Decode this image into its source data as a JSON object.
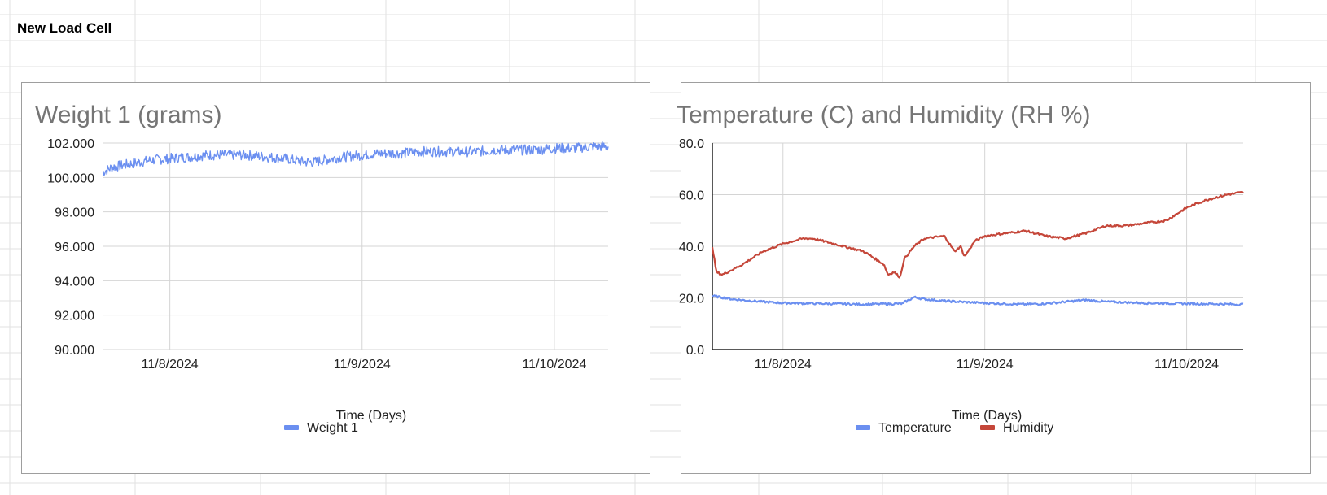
{
  "sheet": {
    "cell_label": "New Load Cell"
  },
  "chart_data": [
    {
      "type": "line",
      "title": "Weight 1 (grams)",
      "xlabel": "Time (Days)",
      "ylabel": "",
      "ylim": [
        90,
        102
      ],
      "y_ticks": [
        "90.000",
        "92.000",
        "94.000",
        "96.000",
        "98.000",
        "100.000",
        "102.000"
      ],
      "x_ticks": [
        "11/8/2024",
        "11/9/2024",
        "11/10/2024"
      ],
      "x_range_days": [
        -0.35,
        2.28
      ],
      "legend_position": "bottom",
      "grid": true,
      "series": [
        {
          "name": "Weight 1",
          "color": "#6b8ff0",
          "x": [
            -0.35,
            -0.3,
            -0.2,
            -0.1,
            0,
            0.1,
            0.2,
            0.3,
            0.4,
            0.5,
            0.6,
            0.7,
            0.75,
            0.8,
            0.9,
            1,
            1.1,
            1.2,
            1.3,
            1.4,
            1.5,
            1.6,
            1.7,
            1.8,
            1.9,
            2,
            2.1,
            2.2,
            2.28
          ],
          "y": [
            100.3,
            100.6,
            100.8,
            101.0,
            101.1,
            101.2,
            101.3,
            101.3,
            101.3,
            101.2,
            101.1,
            100.9,
            100.9,
            101.0,
            101.2,
            101.3,
            101.4,
            101.4,
            101.5,
            101.5,
            101.5,
            101.5,
            101.6,
            101.6,
            101.6,
            101.7,
            101.7,
            101.8,
            101.8
          ],
          "noise": 0.3
        }
      ]
    },
    {
      "type": "line",
      "title": "Temperature (C) and Humidity (RH %)",
      "xlabel": "Time (Days)",
      "ylabel": "",
      "ylim": [
        0,
        80
      ],
      "y_ticks": [
        "0.0",
        "20.0",
        "40.0",
        "60.0",
        "80.0"
      ],
      "x_ticks": [
        "11/8/2024",
        "11/9/2024",
        "11/10/2024"
      ],
      "x_range_days": [
        -0.35,
        2.28
      ],
      "legend_position": "bottom",
      "grid": true,
      "series": [
        {
          "name": "Temperature",
          "color": "#6b8ff0",
          "x": [
            -0.35,
            -0.25,
            -0.1,
            0,
            0.2,
            0.4,
            0.6,
            0.55,
            0.5,
            0.55,
            0.6,
            0.62,
            0.65,
            0.7,
            0.8,
            1,
            1.2,
            1.3,
            1.4,
            1.5,
            1.6,
            1.8,
            2.0,
            2.28
          ],
          "y": [
            20.8,
            19.5,
            18.5,
            18.0,
            17.8,
            17.5,
            17.8,
            17.6,
            17.5,
            17.6,
            18.3,
            19.0,
            20.3,
            19.5,
            18.8,
            18.0,
            17.5,
            17.8,
            18.5,
            19.2,
            18.5,
            18.0,
            17.8,
            17.5
          ]
        },
        {
          "name": "Humidity",
          "color": "#c5473a",
          "x": [
            -0.35,
            -0.33,
            -0.3,
            -0.2,
            -0.1,
            0,
            0.1,
            0.15,
            0.2,
            0.3,
            0.4,
            0.5,
            0.52,
            0.55,
            0.58,
            0.6,
            0.65,
            0.7,
            0.8,
            0.85,
            0.88,
            0.9,
            0.95,
            1.0,
            1.1,
            1.2,
            1.3,
            1.4,
            1.5,
            1.6,
            1.7,
            1.8,
            1.9,
            2.0,
            2.1,
            2.2,
            2.28
          ],
          "y": [
            40,
            30,
            29,
            33,
            38,
            41,
            43,
            43,
            42,
            40,
            38,
            33,
            29,
            30,
            28,
            35,
            40,
            43,
            44,
            38,
            40,
            36,
            42,
            44,
            45,
            46,
            44,
            43,
            45,
            48,
            48,
            49,
            50,
            55,
            58,
            60,
            61
          ]
        }
      ]
    }
  ]
}
